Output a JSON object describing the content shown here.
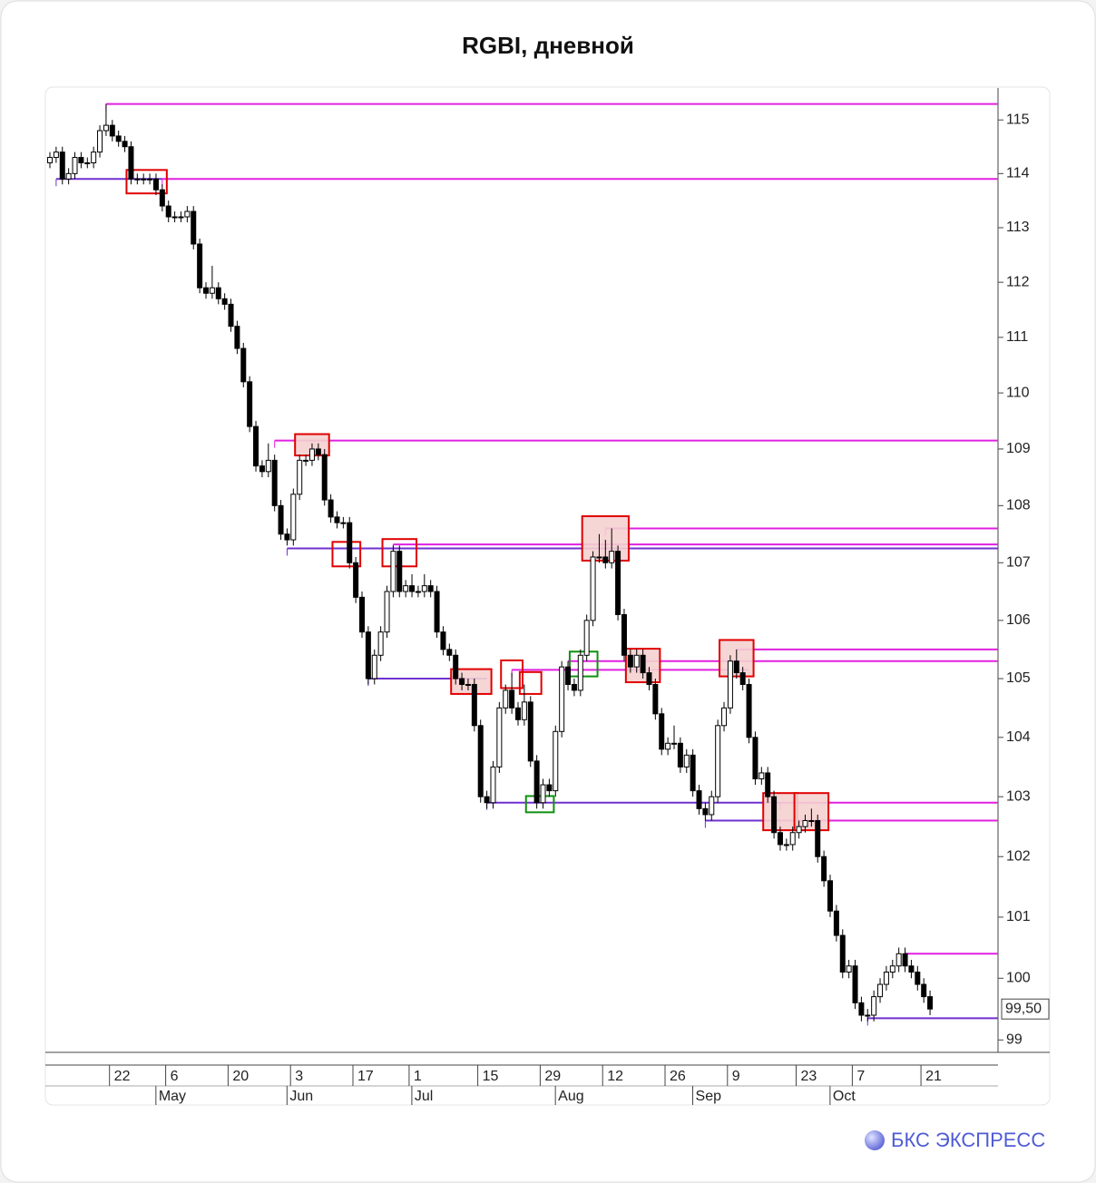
{
  "chart_data": {
    "type": "candlestick",
    "title": "RGBI, дневной",
    "log_scale": true,
    "ylim": [
      98.8,
      115.6
    ],
    "yticks": [
      99,
      100,
      101,
      102,
      103,
      104,
      105,
      106,
      107,
      108,
      109,
      110,
      111,
      112,
      113,
      114,
      115
    ],
    "categories": [
      null,
      null,
      null,
      null,
      null,
      null,
      null,
      null,
      null,
      null,
      null,
      "22",
      null,
      null,
      null,
      null,
      null,
      null,
      null,
      null,
      "6",
      null,
      null,
      null,
      null,
      null,
      null,
      null,
      null,
      null,
      "20",
      null,
      null,
      null,
      null,
      null,
      null,
      null,
      null,
      null,
      "3",
      null,
      null,
      null,
      null,
      null,
      null,
      null,
      null,
      null,
      "17",
      null,
      null,
      null,
      null,
      null,
      null,
      null,
      null,
      "1",
      null,
      null,
      null,
      null,
      null,
      null,
      null,
      null,
      null,
      null,
      "15",
      null,
      null,
      null,
      null,
      null,
      null,
      null,
      null,
      null,
      "29",
      null,
      null,
      null,
      null,
      null,
      null,
      null,
      null,
      null,
      "12",
      null,
      null,
      null,
      null,
      null,
      null,
      null,
      null,
      null,
      "26",
      null,
      null,
      null,
      null,
      null,
      null,
      null,
      null,
      null,
      "9",
      null,
      null,
      null,
      null,
      null,
      null,
      null,
      null,
      null,
      null,
      "23",
      null,
      null,
      null,
      null,
      null,
      null,
      null,
      null,
      "7",
      null,
      null,
      null,
      null,
      null,
      null,
      null,
      null,
      null,
      null,
      "21"
    ],
    "month_categories": [
      null,
      null,
      null,
      null,
      null,
      null,
      null,
      null,
      null,
      null,
      null,
      null,
      null,
      null,
      null,
      null,
      null,
      null,
      "May",
      null,
      null,
      null,
      null,
      null,
      null,
      null,
      null,
      null,
      null,
      null,
      null,
      null,
      null,
      null,
      null,
      null,
      null,
      null,
      null,
      "Jun",
      null,
      null,
      null,
      null,
      null,
      null,
      null,
      null,
      null,
      null,
      null,
      null,
      null,
      null,
      null,
      null,
      null,
      null,
      null,
      "Jul",
      null,
      null,
      null,
      null,
      null,
      null,
      null,
      null,
      null,
      null,
      null,
      null,
      null,
      null,
      null,
      null,
      null,
      null,
      null,
      null,
      null,
      null,
      "Aug",
      null,
      null,
      null,
      null,
      null,
      null,
      null,
      null,
      null,
      null,
      null,
      null,
      null,
      null,
      null,
      null,
      null,
      null,
      null,
      null,
      null,
      "Sep",
      null,
      null,
      null,
      null,
      null,
      null,
      null,
      null,
      null,
      null,
      null,
      null,
      null,
      null,
      null,
      null,
      null,
      null,
      null,
      null,
      null,
      "Oct",
      null,
      null,
      null,
      null,
      null,
      null,
      null,
      null,
      null,
      null,
      null,
      null,
      null,
      null,
      null
    ],
    "open": [
      114.2,
      114.3,
      114.4,
      113.9,
      114.0,
      114.3,
      114.2,
      114.2,
      114.4,
      114.8,
      114.9,
      114.7,
      114.6,
      114.5,
      113.9,
      113.9,
      113.9,
      113.9,
      113.7,
      113.4,
      113.2,
      113.2,
      113.2,
      113.3,
      112.7,
      111.9,
      111.8,
      111.9,
      111.7,
      111.6,
      111.2,
      110.8,
      110.2,
      109.4,
      108.7,
      108.6,
      108.8,
      108.0,
      107.5,
      107.4,
      108.2,
      108.8,
      108.8,
      109.0,
      108.9,
      108.1,
      107.8,
      107.7,
      107.7,
      107.0,
      106.4,
      105.8,
      105.0,
      105.4,
      105.8,
      106.5,
      107.2,
      106.5,
      106.6,
      106.5,
      106.5,
      106.6,
      106.5,
      105.8,
      105.5,
      105.4,
      105.0,
      104.9,
      104.9,
      104.2,
      103.0,
      102.9,
      103.5,
      104.5,
      104.8,
      104.5,
      104.3,
      104.6,
      103.6,
      102.9,
      103.2,
      103.1,
      104.1,
      105.2,
      104.9,
      104.8,
      105.4,
      106.0,
      107.1,
      107.1,
      107.0,
      107.2,
      106.1,
      105.4,
      105.2,
      105.4,
      105.1,
      104.9,
      104.4,
      103.8,
      103.9,
      103.9,
      103.5,
      103.7,
      103.1,
      102.8,
      102.7,
      103.0,
      104.2,
      104.5,
      105.3,
      105.1,
      104.9,
      104.0,
      103.3,
      103.4,
      103.0,
      102.4,
      102.2,
      102.2,
      102.4,
      102.5,
      102.6,
      102.6,
      102.0,
      101.6,
      101.1,
      100.7,
      100.1,
      100.2,
      99.6,
      99.4,
      99.4,
      99.7,
      99.9,
      100.1,
      100.2,
      100.4,
      100.2,
      100.1,
      99.9,
      99.7
    ],
    "high": [
      114.4,
      114.5,
      114.5,
      114.1,
      114.4,
      114.4,
      114.3,
      114.5,
      114.9,
      115.3,
      115.0,
      114.8,
      114.7,
      114.6,
      114.0,
      114.0,
      114.0,
      114.0,
      113.8,
      113.5,
      113.3,
      113.3,
      113.4,
      113.4,
      112.8,
      112.0,
      112.3,
      112.0,
      111.8,
      111.7,
      111.3,
      110.9,
      110.3,
      109.5,
      108.8,
      109.1,
      108.9,
      108.1,
      107.6,
      108.3,
      108.9,
      108.9,
      109.1,
      109.1,
      109.0,
      108.2,
      107.9,
      107.8,
      107.8,
      107.1,
      106.5,
      105.9,
      105.5,
      105.9,
      106.6,
      107.3,
      107.3,
      106.7,
      106.8,
      106.6,
      106.8,
      106.7,
      106.6,
      105.9,
      105.6,
      105.5,
      105.1,
      105.0,
      105.0,
      104.3,
      103.1,
      103.6,
      104.6,
      104.9,
      105.1,
      104.6,
      104.9,
      104.7,
      103.7,
      103.3,
      103.3,
      104.2,
      105.3,
      105.3,
      105.0,
      105.5,
      106.1,
      107.2,
      107.5,
      107.4,
      107.6,
      107.3,
      106.2,
      105.5,
      105.5,
      105.5,
      105.2,
      105.0,
      104.5,
      104.0,
      104.2,
      104.0,
      103.8,
      103.8,
      103.2,
      102.9,
      103.1,
      104.3,
      104.6,
      105.4,
      105.5,
      105.2,
      105.0,
      104.1,
      103.5,
      103.5,
      103.1,
      102.5,
      102.3,
      102.5,
      102.6,
      102.7,
      102.8,
      102.7,
      102.1,
      101.7,
      101.2,
      100.8,
      100.3,
      100.3,
      99.7,
      99.5,
      99.8,
      100.0,
      100.2,
      100.3,
      100.5,
      100.5,
      100.3,
      100.2,
      100.0,
      99.8
    ],
    "low": [
      114.1,
      114.2,
      113.8,
      113.8,
      113.9,
      114.1,
      114.1,
      114.1,
      114.3,
      114.7,
      114.6,
      114.5,
      114.4,
      113.8,
      113.8,
      113.8,
      113.8,
      113.6,
      113.3,
      113.1,
      113.1,
      113.1,
      113.1,
      112.6,
      111.8,
      111.7,
      111.7,
      111.6,
      111.5,
      111.1,
      110.7,
      110.1,
      109.3,
      108.6,
      108.5,
      108.5,
      107.9,
      107.4,
      107.3,
      107.3,
      108.1,
      108.7,
      108.7,
      108.8,
      108.0,
      107.7,
      107.6,
      107.6,
      106.9,
      106.3,
      105.7,
      104.9,
      104.9,
      105.3,
      105.7,
      106.4,
      106.4,
      106.4,
      106.4,
      106.4,
      106.4,
      106.4,
      105.7,
      105.4,
      105.3,
      104.9,
      104.8,
      104.8,
      104.1,
      102.9,
      102.8,
      102.8,
      103.4,
      104.4,
      104.4,
      104.2,
      104.2,
      103.5,
      102.8,
      102.8,
      103.0,
      103.0,
      104.0,
      104.8,
      104.7,
      104.7,
      105.3,
      105.9,
      107.0,
      106.9,
      106.9,
      106.0,
      105.3,
      105.1,
      105.1,
      105.0,
      104.8,
      104.3,
      103.7,
      103.7,
      103.8,
      103.4,
      103.4,
      103.0,
      102.7,
      102.6,
      102.6,
      102.9,
      104.1,
      104.4,
      105.0,
      104.8,
      103.9,
      103.2,
      103.2,
      102.9,
      102.3,
      102.1,
      102.1,
      102.1,
      102.3,
      102.4,
      102.5,
      101.9,
      101.5,
      101.0,
      100.6,
      100.0,
      100.0,
      99.5,
      99.3,
      99.3,
      99.3,
      99.6,
      99.8,
      100.0,
      100.1,
      100.1,
      100.0,
      99.8,
      99.6,
      99.4
    ],
    "close": [
      114.3,
      114.4,
      113.9,
      114.0,
      114.3,
      114.2,
      114.2,
      114.4,
      114.8,
      114.9,
      114.7,
      114.6,
      114.5,
      113.9,
      113.9,
      113.9,
      113.9,
      113.7,
      113.4,
      113.2,
      113.2,
      113.2,
      113.3,
      112.7,
      111.9,
      111.8,
      111.9,
      111.7,
      111.6,
      111.2,
      110.8,
      110.2,
      109.4,
      108.7,
      108.6,
      108.8,
      108.0,
      107.5,
      107.4,
      108.2,
      108.8,
      108.8,
      109.0,
      108.9,
      108.1,
      107.8,
      107.7,
      107.7,
      107.0,
      106.4,
      105.8,
      105.0,
      105.4,
      105.8,
      106.5,
      107.2,
      106.5,
      106.6,
      106.5,
      106.5,
      106.6,
      106.5,
      105.8,
      105.5,
      105.4,
      105.0,
      104.9,
      104.9,
      104.2,
      103.0,
      102.9,
      103.5,
      104.5,
      104.8,
      104.5,
      104.3,
      104.6,
      103.6,
      102.9,
      103.2,
      103.1,
      104.1,
      105.2,
      104.9,
      104.8,
      105.4,
      106.0,
      107.1,
      107.1,
      107.0,
      107.2,
      106.1,
      105.4,
      105.2,
      105.4,
      105.1,
      104.9,
      104.4,
      103.8,
      103.9,
      103.9,
      103.5,
      103.7,
      103.1,
      102.8,
      102.7,
      103.0,
      104.2,
      104.5,
      105.3,
      105.1,
      104.9,
      104.0,
      103.3,
      103.4,
      103.0,
      102.4,
      102.2,
      102.2,
      102.4,
      102.5,
      102.6,
      102.6,
      102.0,
      101.6,
      101.1,
      100.7,
      100.1,
      100.2,
      99.6,
      99.4,
      99.4,
      99.7,
      99.9,
      100.1,
      100.2,
      100.4,
      100.2,
      100.1,
      99.9,
      99.7,
      99.5
    ],
    "up_color": "#ffffff",
    "down_color": "#000000",
    "levels": [
      {
        "value": 115.3,
        "start": 9,
        "color": "#e020e0"
      },
      {
        "value": 113.9,
        "start": 1,
        "end": 18,
        "color": "#7030d0"
      },
      {
        "value": 113.9,
        "start": 18,
        "color": "#e020e0"
      },
      {
        "value": 109.15,
        "start": 36,
        "color": "#e020e0"
      },
      {
        "value": 107.25,
        "start": 38,
        "color": "#7030d0"
      },
      {
        "value": 107.32,
        "start": 55,
        "color": "#e020e0"
      },
      {
        "value": 107.6,
        "start": 89,
        "color": "#e020e0"
      },
      {
        "value": 105.0,
        "start": 51,
        "end": 70,
        "color": "#7030d0"
      },
      {
        "value": 105.15,
        "start": 74,
        "end": 112,
        "color": "#e020e0"
      },
      {
        "value": 105.3,
        "start": 83,
        "color": "#e020e0"
      },
      {
        "value": 105.5,
        "start": 110,
        "color": "#e020e0"
      },
      {
        "value": 102.9,
        "start": 70,
        "end": 117,
        "color": "#7030d0"
      },
      {
        "value": 102.9,
        "start": 117,
        "color": "#e020e0"
      },
      {
        "value": 102.6,
        "start": 105,
        "end": 117,
        "color": "#7030d0"
      },
      {
        "value": 102.6,
        "start": 117,
        "color": "#e020e0"
      },
      {
        "value": 100.4,
        "start": 137,
        "color": "#e020e0"
      },
      {
        "value": 99.35,
        "start": 131,
        "color": "#7030d0"
      }
    ],
    "boxes": [
      {
        "start": 13,
        "end": 18,
        "low": 113.7,
        "high": 114.0,
        "color": "#e00000",
        "fill": "none"
      },
      {
        "start": 40,
        "end": 44,
        "low": 108.95,
        "high": 109.2,
        "color": "#e00000",
        "fill": "#f5d0d0"
      },
      {
        "start": 46,
        "end": 49,
        "low": 107.0,
        "high": 107.3,
        "color": "#e00000",
        "fill": "none"
      },
      {
        "start": 54,
        "end": 58,
        "low": 107.0,
        "high": 107.35,
        "color": "#e00000",
        "fill": "none"
      },
      {
        "start": 65,
        "end": 70,
        "low": 104.8,
        "high": 105.1,
        "color": "#e00000",
        "fill": "#f5d0d0"
      },
      {
        "start": 73,
        "end": 75,
        "low": 104.9,
        "high": 105.25,
        "color": "#e00000",
        "fill": "none"
      },
      {
        "start": 76,
        "end": 78,
        "low": 104.8,
        "high": 105.05,
        "color": "#e00000",
        "fill": "none"
      },
      {
        "start": 86,
        "end": 92,
        "low": 107.1,
        "high": 107.75,
        "color": "#e00000",
        "fill": "#f5d0d0"
      },
      {
        "start": 93,
        "end": 97,
        "low": 105.0,
        "high": 105.45,
        "color": "#e00000",
        "fill": "#f5d0d0"
      },
      {
        "start": 108,
        "end": 112,
        "low": 105.1,
        "high": 105.6,
        "color": "#e00000",
        "fill": "#f5d0d0"
      },
      {
        "start": 115,
        "end": 119,
        "low": 102.5,
        "high": 103.0,
        "color": "#e00000",
        "fill": "#f5d0d0"
      },
      {
        "start": 120,
        "end": 124,
        "low": 102.5,
        "high": 103.0,
        "color": "#e00000",
        "fill": "#f5d0d0"
      },
      {
        "start": 77,
        "end": 80,
        "low": 102.8,
        "high": 102.95,
        "color": "#109010",
        "fill": "none"
      },
      {
        "start": 84,
        "end": 87,
        "low": 105.1,
        "high": 105.4,
        "color": "#109010",
        "fill": "none"
      }
    ],
    "last_price": 99.5,
    "last_price_label": "99,50"
  },
  "logo": "БКС ЭКСПРЕСС"
}
